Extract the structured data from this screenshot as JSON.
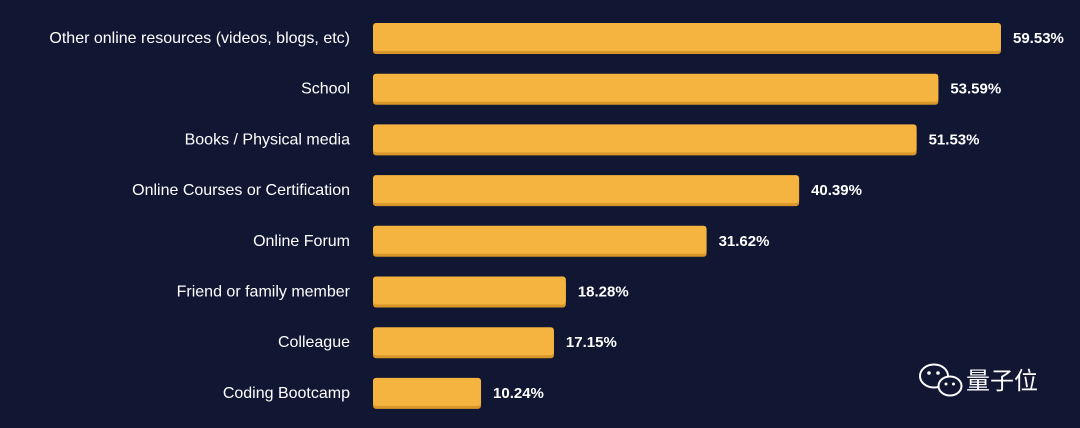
{
  "chart_data": {
    "type": "bar",
    "orientation": "horizontal",
    "categories": [
      "Other online resources (videos, blogs, etc)",
      "School",
      "Books / Physical media",
      "Online Courses or Certification",
      "Online Forum",
      "Friend or family member",
      "Colleague",
      "Coding Bootcamp"
    ],
    "values": [
      59.53,
      53.59,
      51.53,
      40.39,
      31.62,
      18.28,
      17.15,
      10.24
    ],
    "value_labels": [
      "59.53%",
      "53.59%",
      "51.53%",
      "40.39%",
      "31.62%",
      "18.28%",
      "17.15%",
      "10.24%"
    ],
    "xlim": [
      0,
      59.53
    ],
    "grid": false,
    "legend": "none"
  },
  "colors": {
    "background": "#111633",
    "bar": "#F4B43F",
    "bar_shadow": "#D9972A",
    "text": "#FFFFFF"
  },
  "watermark": {
    "text": "量子位",
    "icon": "wechat-icon"
  }
}
